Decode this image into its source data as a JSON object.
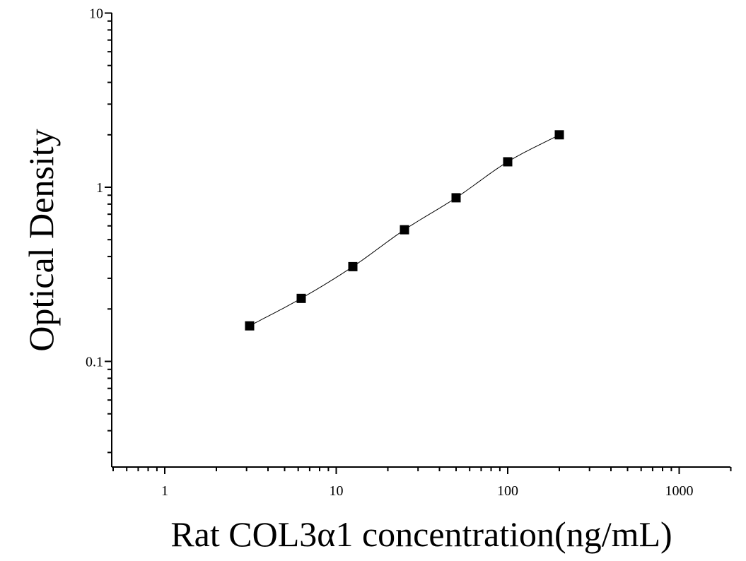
{
  "chart_data": {
    "type": "scatter",
    "title": "",
    "xlabel": "Rat COL3α1 concentration(ng/mL)",
    "ylabel": "Optical Density",
    "x_scale": "log",
    "y_scale": "log",
    "xlim": [
      0.5,
      2000
    ],
    "ylim": [
      0.025,
      10
    ],
    "x_tick_labels": [
      "1",
      "10",
      "100",
      "1000"
    ],
    "y_tick_labels": [
      "0.1",
      "1",
      "10"
    ],
    "grid": false,
    "legend": "none",
    "marker": "filled-square",
    "fit_curve": true,
    "series": [
      {
        "x": [
          3.125,
          6.25,
          12.5,
          25,
          50,
          100,
          200
        ],
        "y": [
          0.16,
          0.23,
          0.35,
          0.57,
          0.87,
          1.4,
          2.0
        ]
      }
    ],
    "colors": {
      "marker": "#000000",
      "curve": "#000000",
      "axis": "#000000"
    }
  }
}
